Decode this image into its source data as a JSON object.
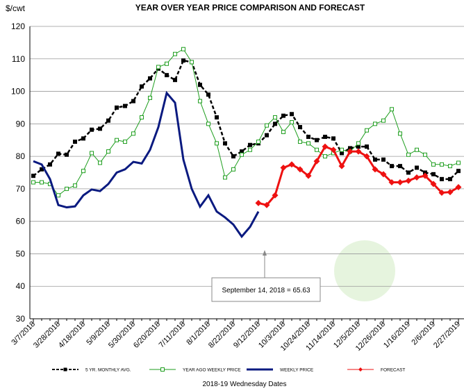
{
  "chart_data": {
    "type": "line",
    "title": "YEAR OVER YEAR PRICE COMPARISON AND FORECAST",
    "y_label": "$/cwt",
    "x_label": "2018-19 Wednesday Dates",
    "categories": [
      "3/7/2018",
      null,
      null,
      "3/28/2018",
      null,
      null,
      "4/18/2018",
      null,
      null,
      "5/9/2018",
      null,
      null,
      "5/30/2018",
      null,
      null,
      "6/20/2018",
      null,
      null,
      "7/11/2018",
      null,
      null,
      "8/1/2018",
      null,
      null,
      "8/22/2018",
      null,
      null,
      "9/12/2018",
      null,
      null,
      "10/3/2018",
      null,
      null,
      "10/24/2018",
      null,
      null,
      "11/14/2018",
      null,
      null,
      "12/5/2018",
      null,
      null,
      "12/26/2018",
      null,
      null,
      "1/16/2019",
      null,
      null,
      "2/6/2019",
      null,
      null,
      "2/27/2019"
    ],
    "ylim": [
      30,
      120
    ],
    "yticks": [
      30,
      40,
      50,
      60,
      70,
      80,
      90,
      100,
      110,
      120
    ],
    "grid": true,
    "series": [
      {
        "name": "5 YR. MONTHLY AVG.",
        "color": "#000000",
        "dash": true,
        "marker": "square",
        "values": [
          74,
          76,
          77.5,
          80.8,
          80.5,
          84.5,
          85.5,
          88.2,
          88.5,
          91,
          95,
          95.5,
          97,
          101.5,
          104,
          107,
          105,
          103.5,
          109.5,
          109,
          102,
          99,
          92,
          84,
          80,
          81.5,
          83.5,
          84,
          86.5,
          90,
          92.5,
          93,
          89,
          86,
          85,
          86,
          85.5,
          81,
          82.5,
          83,
          83,
          79,
          79,
          77,
          77,
          75,
          76.5,
          75,
          74.5,
          73,
          73,
          75.5
        ]
      },
      {
        "name": "YEAR AGO WEEKLY PRICE",
        "color": "#1e9e1e",
        "dash": false,
        "marker": "hollow-square",
        "values": [
          72,
          72,
          71.5,
          68,
          70,
          71,
          75.5,
          81,
          78,
          81.5,
          85,
          84.5,
          87,
          92,
          98,
          107.5,
          108.5,
          111.5,
          113,
          109,
          97,
          90,
          84,
          73.5,
          76,
          80.5,
          82,
          84.5,
          89.5,
          92,
          87.5,
          90.5,
          84.5,
          84,
          82,
          80,
          81,
          82,
          81.5,
          84,
          88,
          90,
          91,
          94.5,
          87,
          80.5,
          82,
          80.5,
          77.5,
          77.5,
          77,
          78
        ]
      },
      {
        "name": "WEEKLY PRICE",
        "color": "#0a1a80",
        "dash": false,
        "marker": "none",
        "values": [
          78.5,
          77.5,
          73,
          65,
          64.3,
          64.6,
          68,
          69.8,
          69.3,
          71.5,
          75,
          76,
          78.3,
          77.8,
          82,
          89,
          99.5,
          96.5,
          79,
          70,
          64.5,
          68,
          63,
          61.2,
          59,
          55.3,
          58.3,
          63,
          null,
          null,
          null,
          null,
          null,
          null,
          null,
          null,
          null,
          null,
          null,
          null,
          null,
          null,
          null,
          null,
          null,
          null,
          null,
          null,
          null,
          null,
          null,
          null
        ]
      },
      {
        "name": "FORECAST",
        "color": "#ee1111",
        "dash": false,
        "marker": "diamond",
        "values": [
          null,
          null,
          null,
          null,
          null,
          null,
          null,
          null,
          null,
          null,
          null,
          null,
          null,
          null,
          null,
          null,
          null,
          null,
          null,
          null,
          null,
          null,
          null,
          null,
          null,
          null,
          null,
          65.63,
          65,
          68,
          76.5,
          77.5,
          76,
          74,
          78.5,
          83,
          82,
          77,
          81.5,
          81.5,
          80,
          76,
          74.5,
          72,
          72,
          72.5,
          73.5,
          74,
          71.5,
          68.8,
          69,
          70.5
        ]
      }
    ],
    "annotation": "September 14, 2018 = 65.63"
  }
}
